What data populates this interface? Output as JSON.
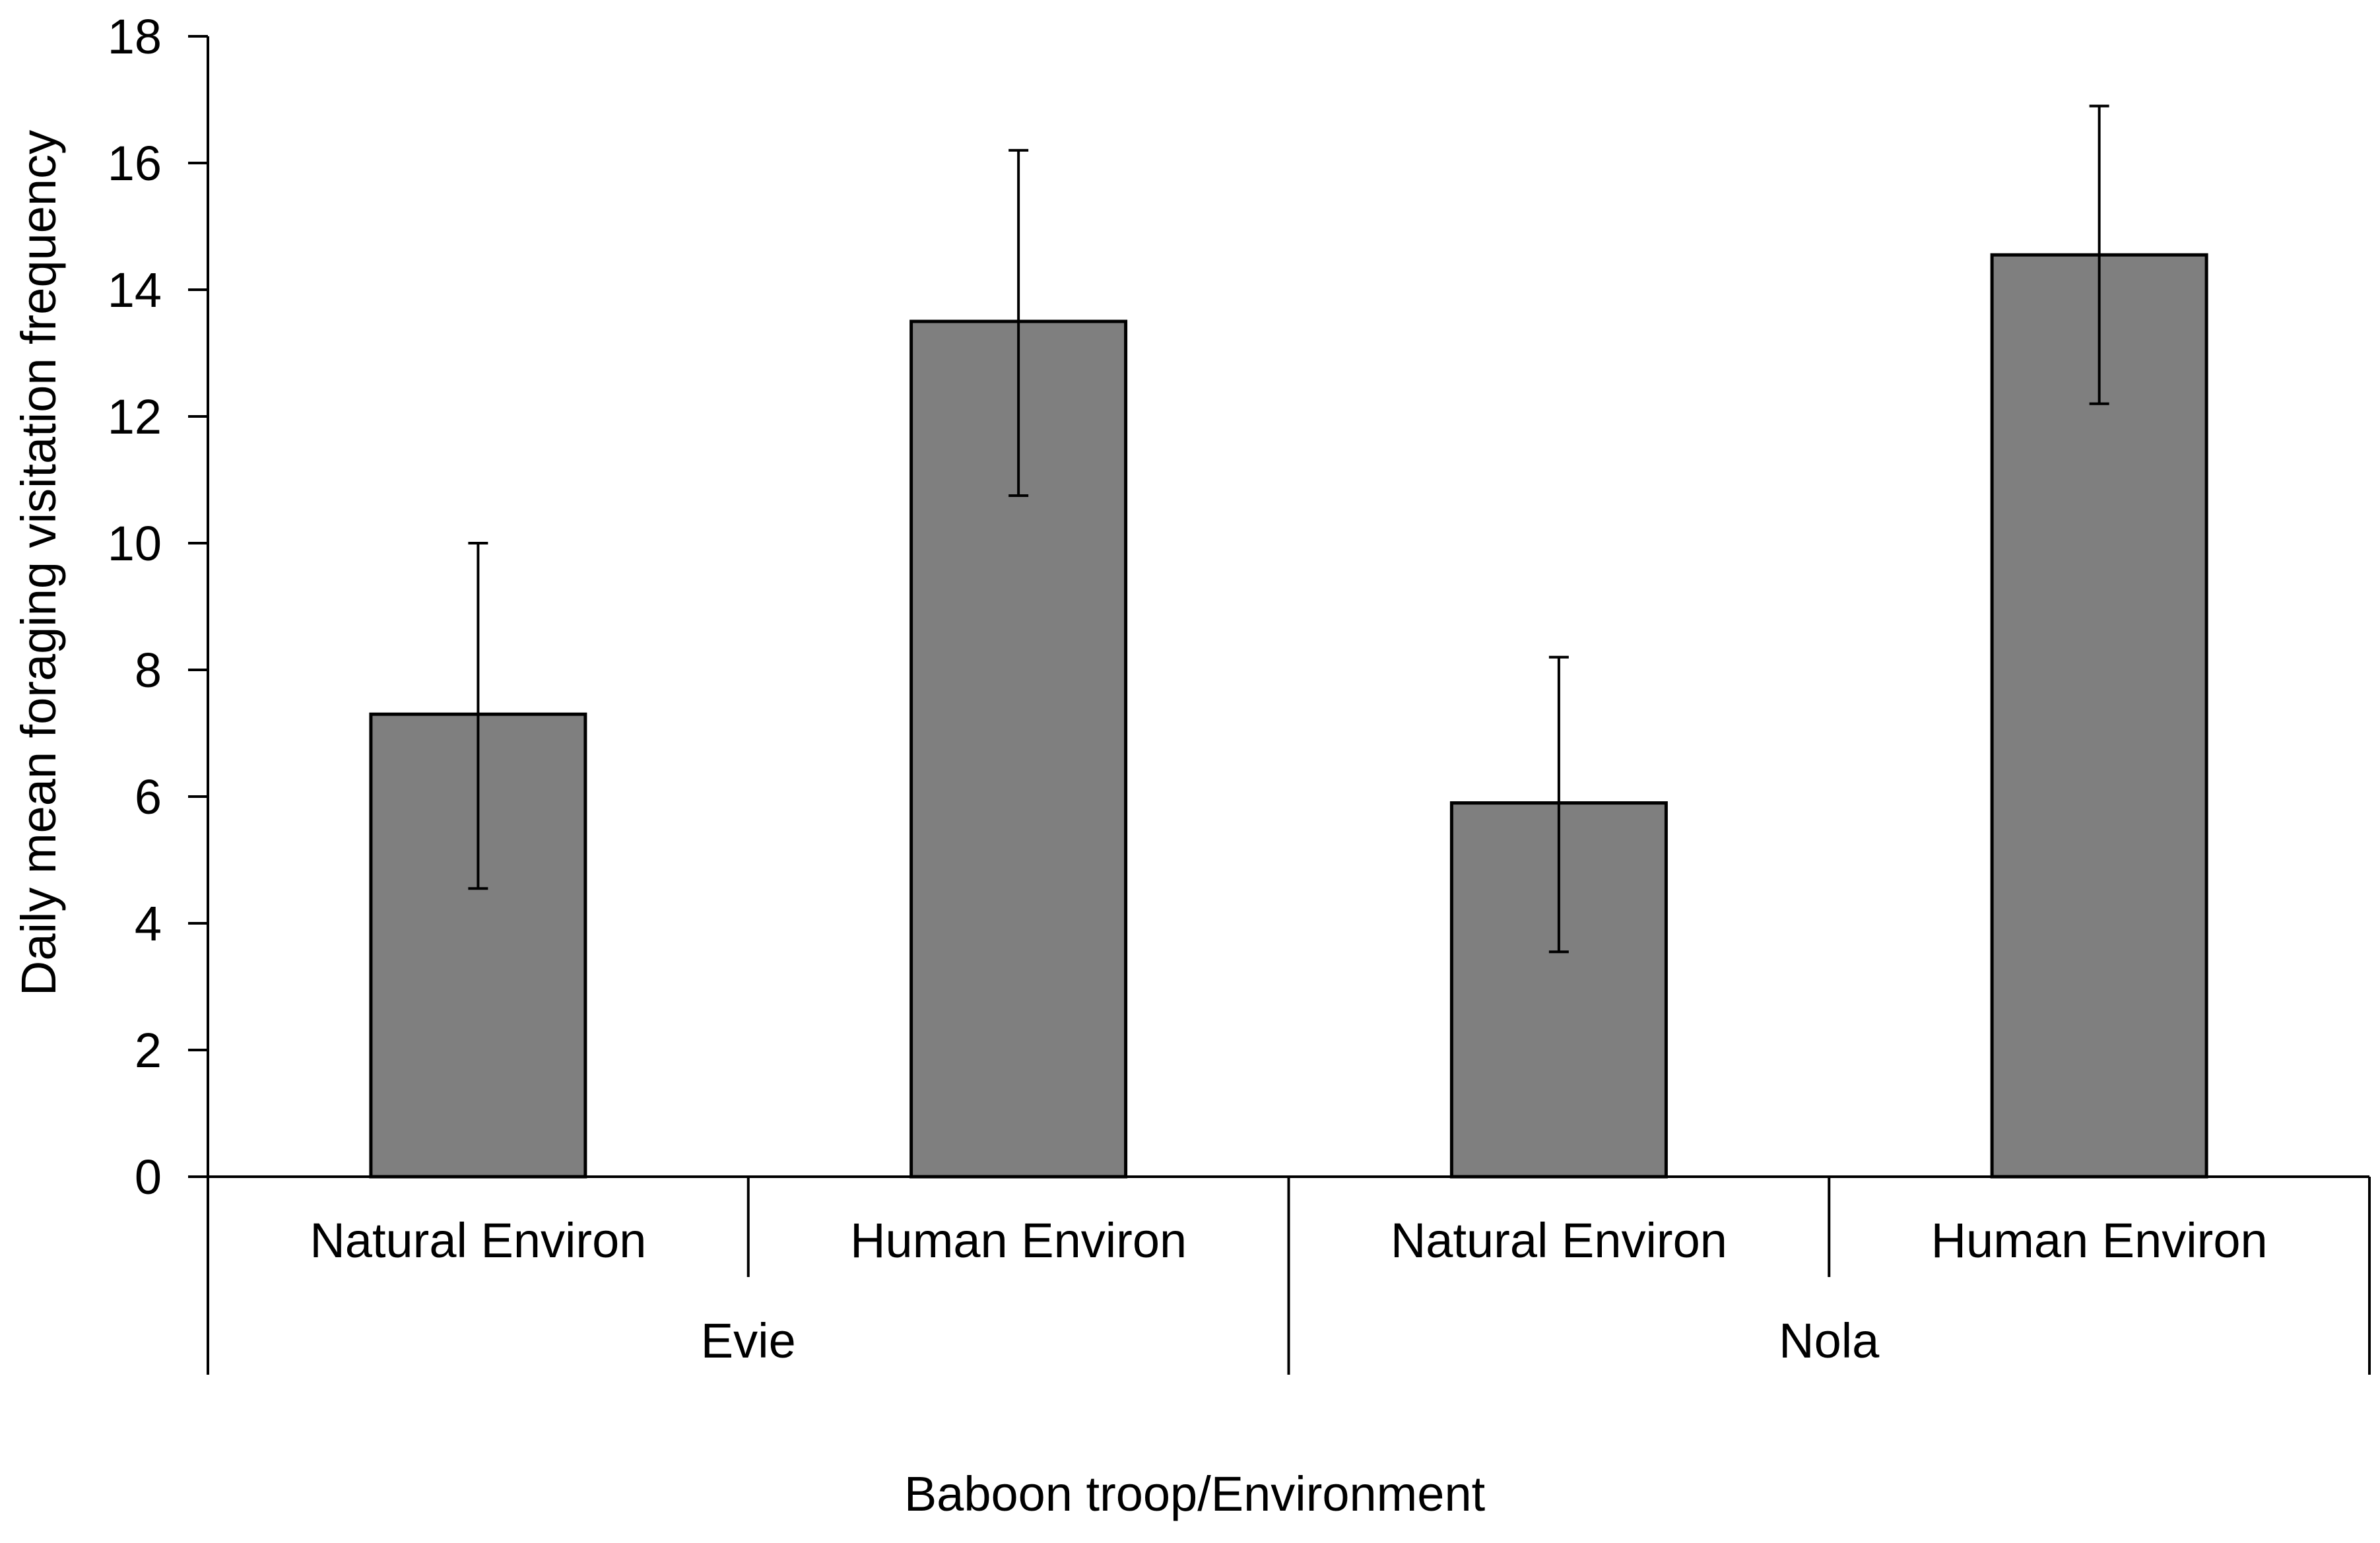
{
  "chart_data": {
    "type": "bar",
    "title": "",
    "ylabel": "Daily mean foraging visitation frequency",
    "xlabel": "Baboon troop/Environment",
    "ylim": [
      0,
      18
    ],
    "yticks": [
      0,
      2,
      4,
      6,
      8,
      10,
      12,
      14,
      16,
      18
    ],
    "grid": false,
    "groups": [
      {
        "name": "Evie",
        "categories": [
          "Natural Environ",
          "Human Environ"
        ],
        "values": [
          7.3,
          13.5
        ],
        "err_low": [
          4.55,
          10.75
        ],
        "err_high": [
          10.0,
          16.2
        ]
      },
      {
        "name": "Nola",
        "categories": [
          "Natural Environ",
          "Human Environ"
        ],
        "values": [
          5.9,
          14.55
        ],
        "err_low": [
          3.55,
          12.2
        ],
        "err_high": [
          8.2,
          16.9
        ]
      }
    ],
    "colors": {
      "bar_fill": "#7f7f7f",
      "bar_stroke": "#000000",
      "axis": "#000000"
    }
  }
}
